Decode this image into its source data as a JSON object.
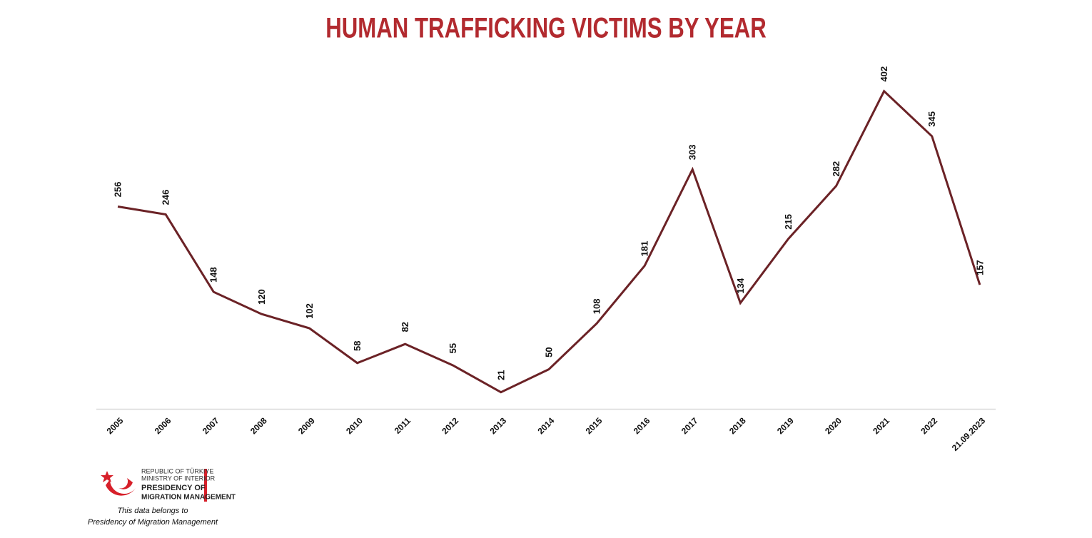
{
  "chart_data": {
    "type": "line",
    "title": "HUMAN TRAFFICKING VICTIMS BY YEAR",
    "categories": [
      "2005",
      "2006",
      "2007",
      "2008",
      "2009",
      "2010",
      "2011",
      "2012",
      "2013",
      "2014",
      "2015",
      "2016",
      "2017",
      "2018",
      "2019",
      "2020",
      "2021",
      "2022",
      "21.09.2023"
    ],
    "values": [
      256,
      246,
      148,
      120,
      102,
      58,
      82,
      55,
      21,
      50,
      108,
      181,
      303,
      134,
      215,
      282,
      402,
      345,
      157
    ],
    "color": "#6b2226",
    "ylim": [
      0,
      450
    ]
  },
  "footer": {
    "logo_lines": [
      "REPUBLIC OF TÜRKIYE",
      "MINISTRY OF INTERIOR",
      "PRESIDENCY OF",
      "MIGRATION MANAGEMENT"
    ],
    "note_lines": [
      "This data belongs to",
      "Presidency of Migration Management"
    ]
  }
}
